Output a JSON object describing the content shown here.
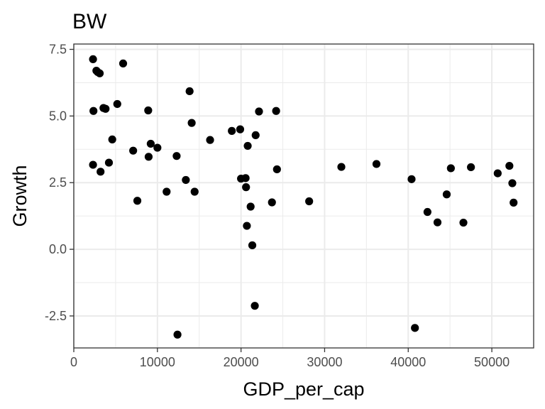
{
  "chart_data": {
    "type": "scatter",
    "title": "BW",
    "xlabel": "GDP_per_cap",
    "ylabel": "Growth",
    "xlim": [
      0,
      55000
    ],
    "ylim": [
      -3.7,
      7.7
    ],
    "x_ticks": [
      0,
      10000,
      20000,
      30000,
      40000,
      50000
    ],
    "x_tick_labels": [
      "0",
      "10000",
      "20000",
      "30000",
      "40000",
      "50000"
    ],
    "y_ticks": [
      -2.5,
      0.0,
      2.5,
      5.0,
      7.5
    ],
    "y_tick_labels": [
      "-2.5",
      "0.0",
      "2.5",
      "5.0",
      "7.5"
    ],
    "grid": true,
    "theme": "black-and-white",
    "point_color": "#000000",
    "points": [
      {
        "x": 2300,
        "y": 7.13
      },
      {
        "x": 2700,
        "y": 6.7
      },
      {
        "x": 2850,
        "y": 6.65
      },
      {
        "x": 3100,
        "y": 6.6
      },
      {
        "x": 5900,
        "y": 6.97
      },
      {
        "x": 2350,
        "y": 5.19
      },
      {
        "x": 3550,
        "y": 5.3
      },
      {
        "x": 3800,
        "y": 5.27
      },
      {
        "x": 5200,
        "y": 5.45
      },
      {
        "x": 4600,
        "y": 4.12
      },
      {
        "x": 2300,
        "y": 3.17
      },
      {
        "x": 3200,
        "y": 2.91
      },
      {
        "x": 4200,
        "y": 3.25
      },
      {
        "x": 7100,
        "y": 3.7
      },
      {
        "x": 7600,
        "y": 1.82
      },
      {
        "x": 8900,
        "y": 5.21
      },
      {
        "x": 9200,
        "y": 3.96
      },
      {
        "x": 8950,
        "y": 3.47
      },
      {
        "x": 10000,
        "y": 3.81
      },
      {
        "x": 11100,
        "y": 2.16
      },
      {
        "x": 12300,
        "y": 3.5
      },
      {
        "x": 13400,
        "y": 2.6
      },
      {
        "x": 13850,
        "y": 5.93
      },
      {
        "x": 14100,
        "y": 4.74
      },
      {
        "x": 14450,
        "y": 2.16
      },
      {
        "x": 12400,
        "y": -3.2
      },
      {
        "x": 16300,
        "y": 4.1
      },
      {
        "x": 18900,
        "y": 4.44
      },
      {
        "x": 19900,
        "y": 4.5
      },
      {
        "x": 20000,
        "y": 2.65
      },
      {
        "x": 20550,
        "y": 2.67
      },
      {
        "x": 20600,
        "y": 2.33
      },
      {
        "x": 20800,
        "y": 3.88
      },
      {
        "x": 20700,
        "y": 0.88
      },
      {
        "x": 21150,
        "y": 1.6
      },
      {
        "x": 21350,
        "y": 0.15
      },
      {
        "x": 21750,
        "y": 4.28
      },
      {
        "x": 22150,
        "y": 5.17
      },
      {
        "x": 21650,
        "y": -2.12
      },
      {
        "x": 23700,
        "y": 1.76
      },
      {
        "x": 24200,
        "y": 5.19
      },
      {
        "x": 24300,
        "y": 3.0
      },
      {
        "x": 28150,
        "y": 1.8
      },
      {
        "x": 32000,
        "y": 3.09
      },
      {
        "x": 36200,
        "y": 3.2
      },
      {
        "x": 40400,
        "y": 2.63
      },
      {
        "x": 40800,
        "y": -2.95
      },
      {
        "x": 42300,
        "y": 1.4
      },
      {
        "x": 43500,
        "y": 1.01
      },
      {
        "x": 44600,
        "y": 2.06
      },
      {
        "x": 45100,
        "y": 3.04
      },
      {
        "x": 46600,
        "y": 1.0
      },
      {
        "x": 47500,
        "y": 3.08
      },
      {
        "x": 50700,
        "y": 2.85
      },
      {
        "x": 52100,
        "y": 3.13
      },
      {
        "x": 52450,
        "y": 2.48
      },
      {
        "x": 52600,
        "y": 1.75
      }
    ]
  }
}
